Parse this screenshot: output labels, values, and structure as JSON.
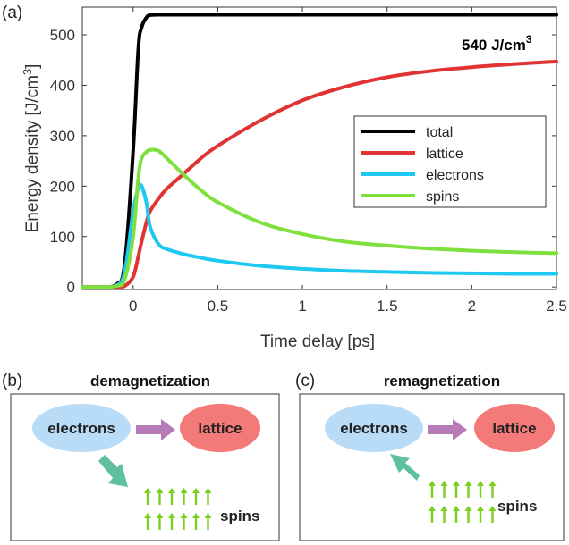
{
  "panel_a": {
    "label": "(a)",
    "annotation": "540 J/cm",
    "annotation_sup": "3"
  },
  "chart_data": {
    "type": "line",
    "xlabel": "Time delay  [ps]",
    "ylabel": "Energy density [J/cm",
    "ylabel_sup": "3",
    "ylabel_end": "]",
    "xlim": [
      -0.3,
      2.5
    ],
    "ylim": [
      -5,
      555
    ],
    "xticks": [
      0,
      0.5,
      1,
      1.5,
      2,
      2.5
    ],
    "xtick_labels": [
      "0",
      "0.5",
      "1",
      "1.5",
      "2",
      "2.5"
    ],
    "yticks": [
      0,
      100,
      200,
      300,
      400,
      500
    ],
    "ytick_labels": [
      "0",
      "100",
      "200",
      "300",
      "400",
      "500"
    ],
    "grid": false,
    "legend_position": "right",
    "x": [
      -0.3,
      -0.2,
      -0.1,
      -0.05,
      0,
      0.03,
      0.05,
      0.08,
      0.1,
      0.15,
      0.2,
      0.3,
      0.4,
      0.5,
      0.75,
      1.0,
      1.25,
      1.5,
      1.75,
      2.0,
      2.25,
      2.5
    ],
    "series": [
      {
        "name": "total",
        "color": "#000000",
        "values": [
          0,
          0,
          5,
          45,
          270,
          470,
          515,
          535,
          539,
          540,
          540,
          540,
          540,
          540,
          540,
          540,
          540,
          540,
          540,
          540,
          540,
          540
        ]
      },
      {
        "name": "lattice",
        "color": "#e03333",
        "values": [
          0,
          0,
          0,
          2,
          20,
          60,
          90,
          130,
          150,
          175,
          195,
          225,
          255,
          280,
          330,
          370,
          397,
          416,
          428,
          436,
          442,
          447
        ]
      },
      {
        "name": "electrons",
        "color": "#1ec8f0",
        "values": [
          0,
          0,
          3,
          30,
          150,
          195,
          200,
          165,
          120,
          85,
          75,
          65,
          58,
          52,
          42,
          36,
          32,
          30,
          28,
          27,
          26,
          26
        ]
      },
      {
        "name": "spins",
        "color": "#7ee03c",
        "values": [
          0,
          0,
          2,
          15,
          100,
          215,
          255,
          268,
          272,
          270,
          255,
          222,
          192,
          168,
          128,
          105,
          90,
          82,
          76,
          72,
          69,
          67
        ]
      }
    ]
  },
  "panel_b": {
    "label": "(b)",
    "title": "demagnetization",
    "electrons_label": "electrons",
    "lattice_label": "lattice",
    "spins_label": "spins"
  },
  "panel_c": {
    "label": "(c)",
    "title": "remagnetization",
    "electrons_label": "electrons",
    "lattice_label": "lattice",
    "spins_label": "spins"
  },
  "colors": {
    "electrons_fill": "#b8dcf8",
    "lattice_fill": "#f47a7a",
    "arrow_purple": "#b57ab7",
    "arrow_teal": "#5fc0a0",
    "spin_green": "#7ccf1f"
  }
}
